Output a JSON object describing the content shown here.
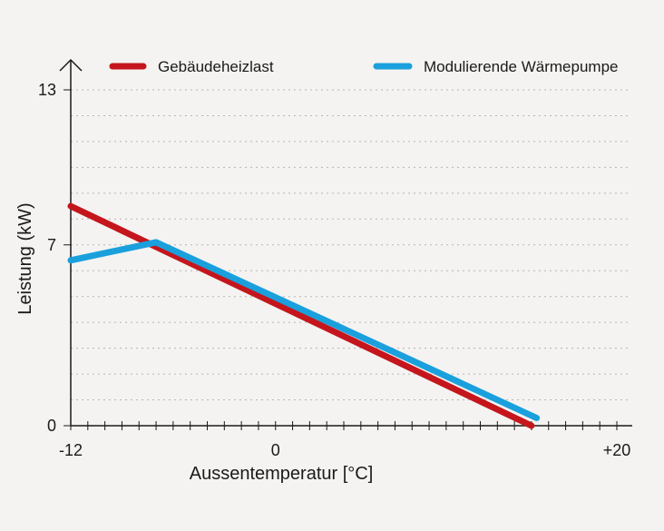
{
  "chart_data": {
    "type": "line",
    "title": "",
    "xlabel": "Aussentemperatur [°C]",
    "ylabel": "Leistung (kW)",
    "xlim": [
      -12,
      20
    ],
    "ylim": [
      0,
      13
    ],
    "x_tick_values": [
      -12,
      0,
      20
    ],
    "x_tick_labels": [
      "-12",
      "0",
      "+20"
    ],
    "y_tick_values": [
      0,
      7,
      13
    ],
    "y_tick_labels": [
      "0",
      "7",
      "13"
    ],
    "x_minor_step": 1,
    "y_grid_step": 1,
    "grid": true,
    "legend_position": "top",
    "series": [
      {
        "name": "Gebäudeheizlast",
        "color": "#c4161c",
        "points": [
          {
            "x": -12,
            "y": 8.5
          },
          {
            "x": 15,
            "y": 0
          }
        ]
      },
      {
        "name": "Modulierende Wärmepumpe",
        "color": "#1aa0dc",
        "points": [
          {
            "x": -12,
            "y": 6.4
          },
          {
            "x": -7,
            "y": 7.1
          },
          {
            "x": 15.3,
            "y": 0.3
          }
        ]
      }
    ]
  },
  "colors": {
    "background": "#f4f3f1",
    "axis": "#1a1a1a",
    "grid": "#b5b5b5"
  }
}
